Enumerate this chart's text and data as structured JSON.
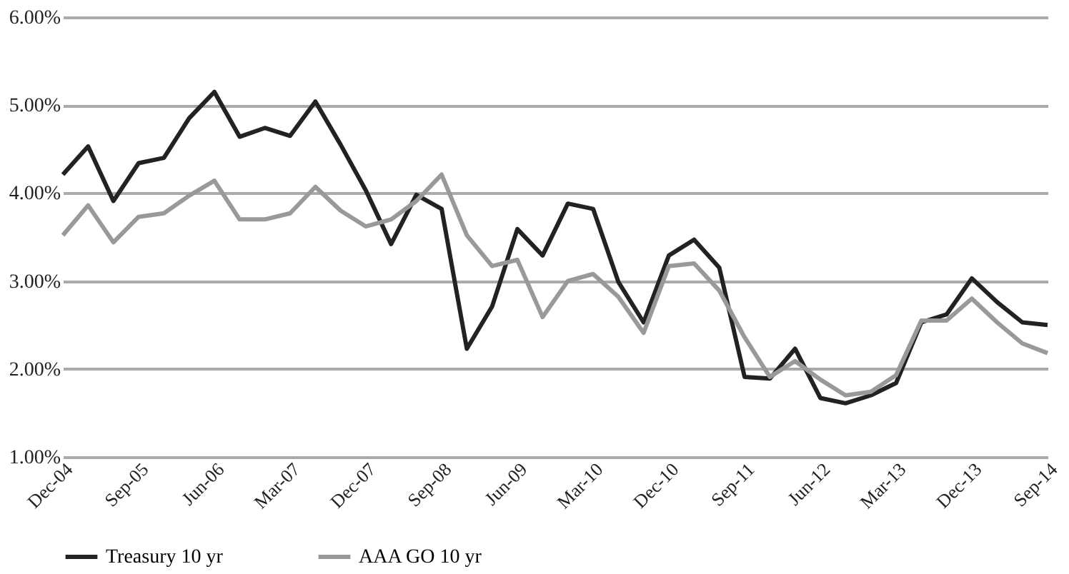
{
  "chart_data": {
    "type": "line",
    "categories": [
      "Dec-04",
      null,
      null,
      "Sep-05",
      null,
      null,
      "Jun-06",
      null,
      null,
      "Mar-07",
      null,
      null,
      "Dec-07",
      null,
      null,
      "Sep-08",
      null,
      null,
      "Jun-09",
      null,
      null,
      "Mar-10",
      null,
      null,
      "Dec-10",
      null,
      null,
      "Sep-11",
      null,
      null,
      "Jun-12",
      null,
      null,
      "Mar-13",
      null,
      null,
      "Dec-13",
      null,
      null,
      "Sep-14"
    ],
    "series": [
      {
        "name": "Treasury 10 yr",
        "color": "#222222",
        "values": [
          4.21,
          4.53,
          3.91,
          4.34,
          4.4,
          4.85,
          5.15,
          4.64,
          4.74,
          4.65,
          5.04,
          4.55,
          4.03,
          3.42,
          3.98,
          3.82,
          2.23,
          2.71,
          3.59,
          3.29,
          3.88,
          3.82,
          2.99,
          2.53,
          3.29,
          3.47,
          3.15,
          1.91,
          1.89,
          2.23,
          1.67,
          1.61,
          1.7,
          1.84,
          2.53,
          2.62,
          3.03,
          2.76,
          2.53,
          2.5
        ]
      },
      {
        "name": "AAA GO 10 yr",
        "color": "#999999",
        "values": [
          3.52,
          3.86,
          3.44,
          3.73,
          3.77,
          3.97,
          4.14,
          3.7,
          3.7,
          3.77,
          4.07,
          3.8,
          3.62,
          3.7,
          3.91,
          4.21,
          3.52,
          3.17,
          3.24,
          2.59,
          3.0,
          3.08,
          2.82,
          2.41,
          3.17,
          3.2,
          2.89,
          2.36,
          1.91,
          2.09,
          1.88,
          1.7,
          1.74,
          1.93,
          2.55,
          2.55,
          2.8,
          2.53,
          2.29,
          2.18
        ]
      }
    ],
    "ylim": [
      1,
      6
    ],
    "yticks": [
      {
        "value": 1,
        "label": "1.00%"
      },
      {
        "value": 2,
        "label": "2.00%"
      },
      {
        "value": 3,
        "label": "3.00%"
      },
      {
        "value": 4,
        "label": "4.00%"
      },
      {
        "value": 5,
        "label": "5.00%"
      },
      {
        "value": 6,
        "label": "6.00%"
      }
    ],
    "grid": "y",
    "legend": "bottom",
    "line_style": "solid",
    "marker": "none"
  }
}
